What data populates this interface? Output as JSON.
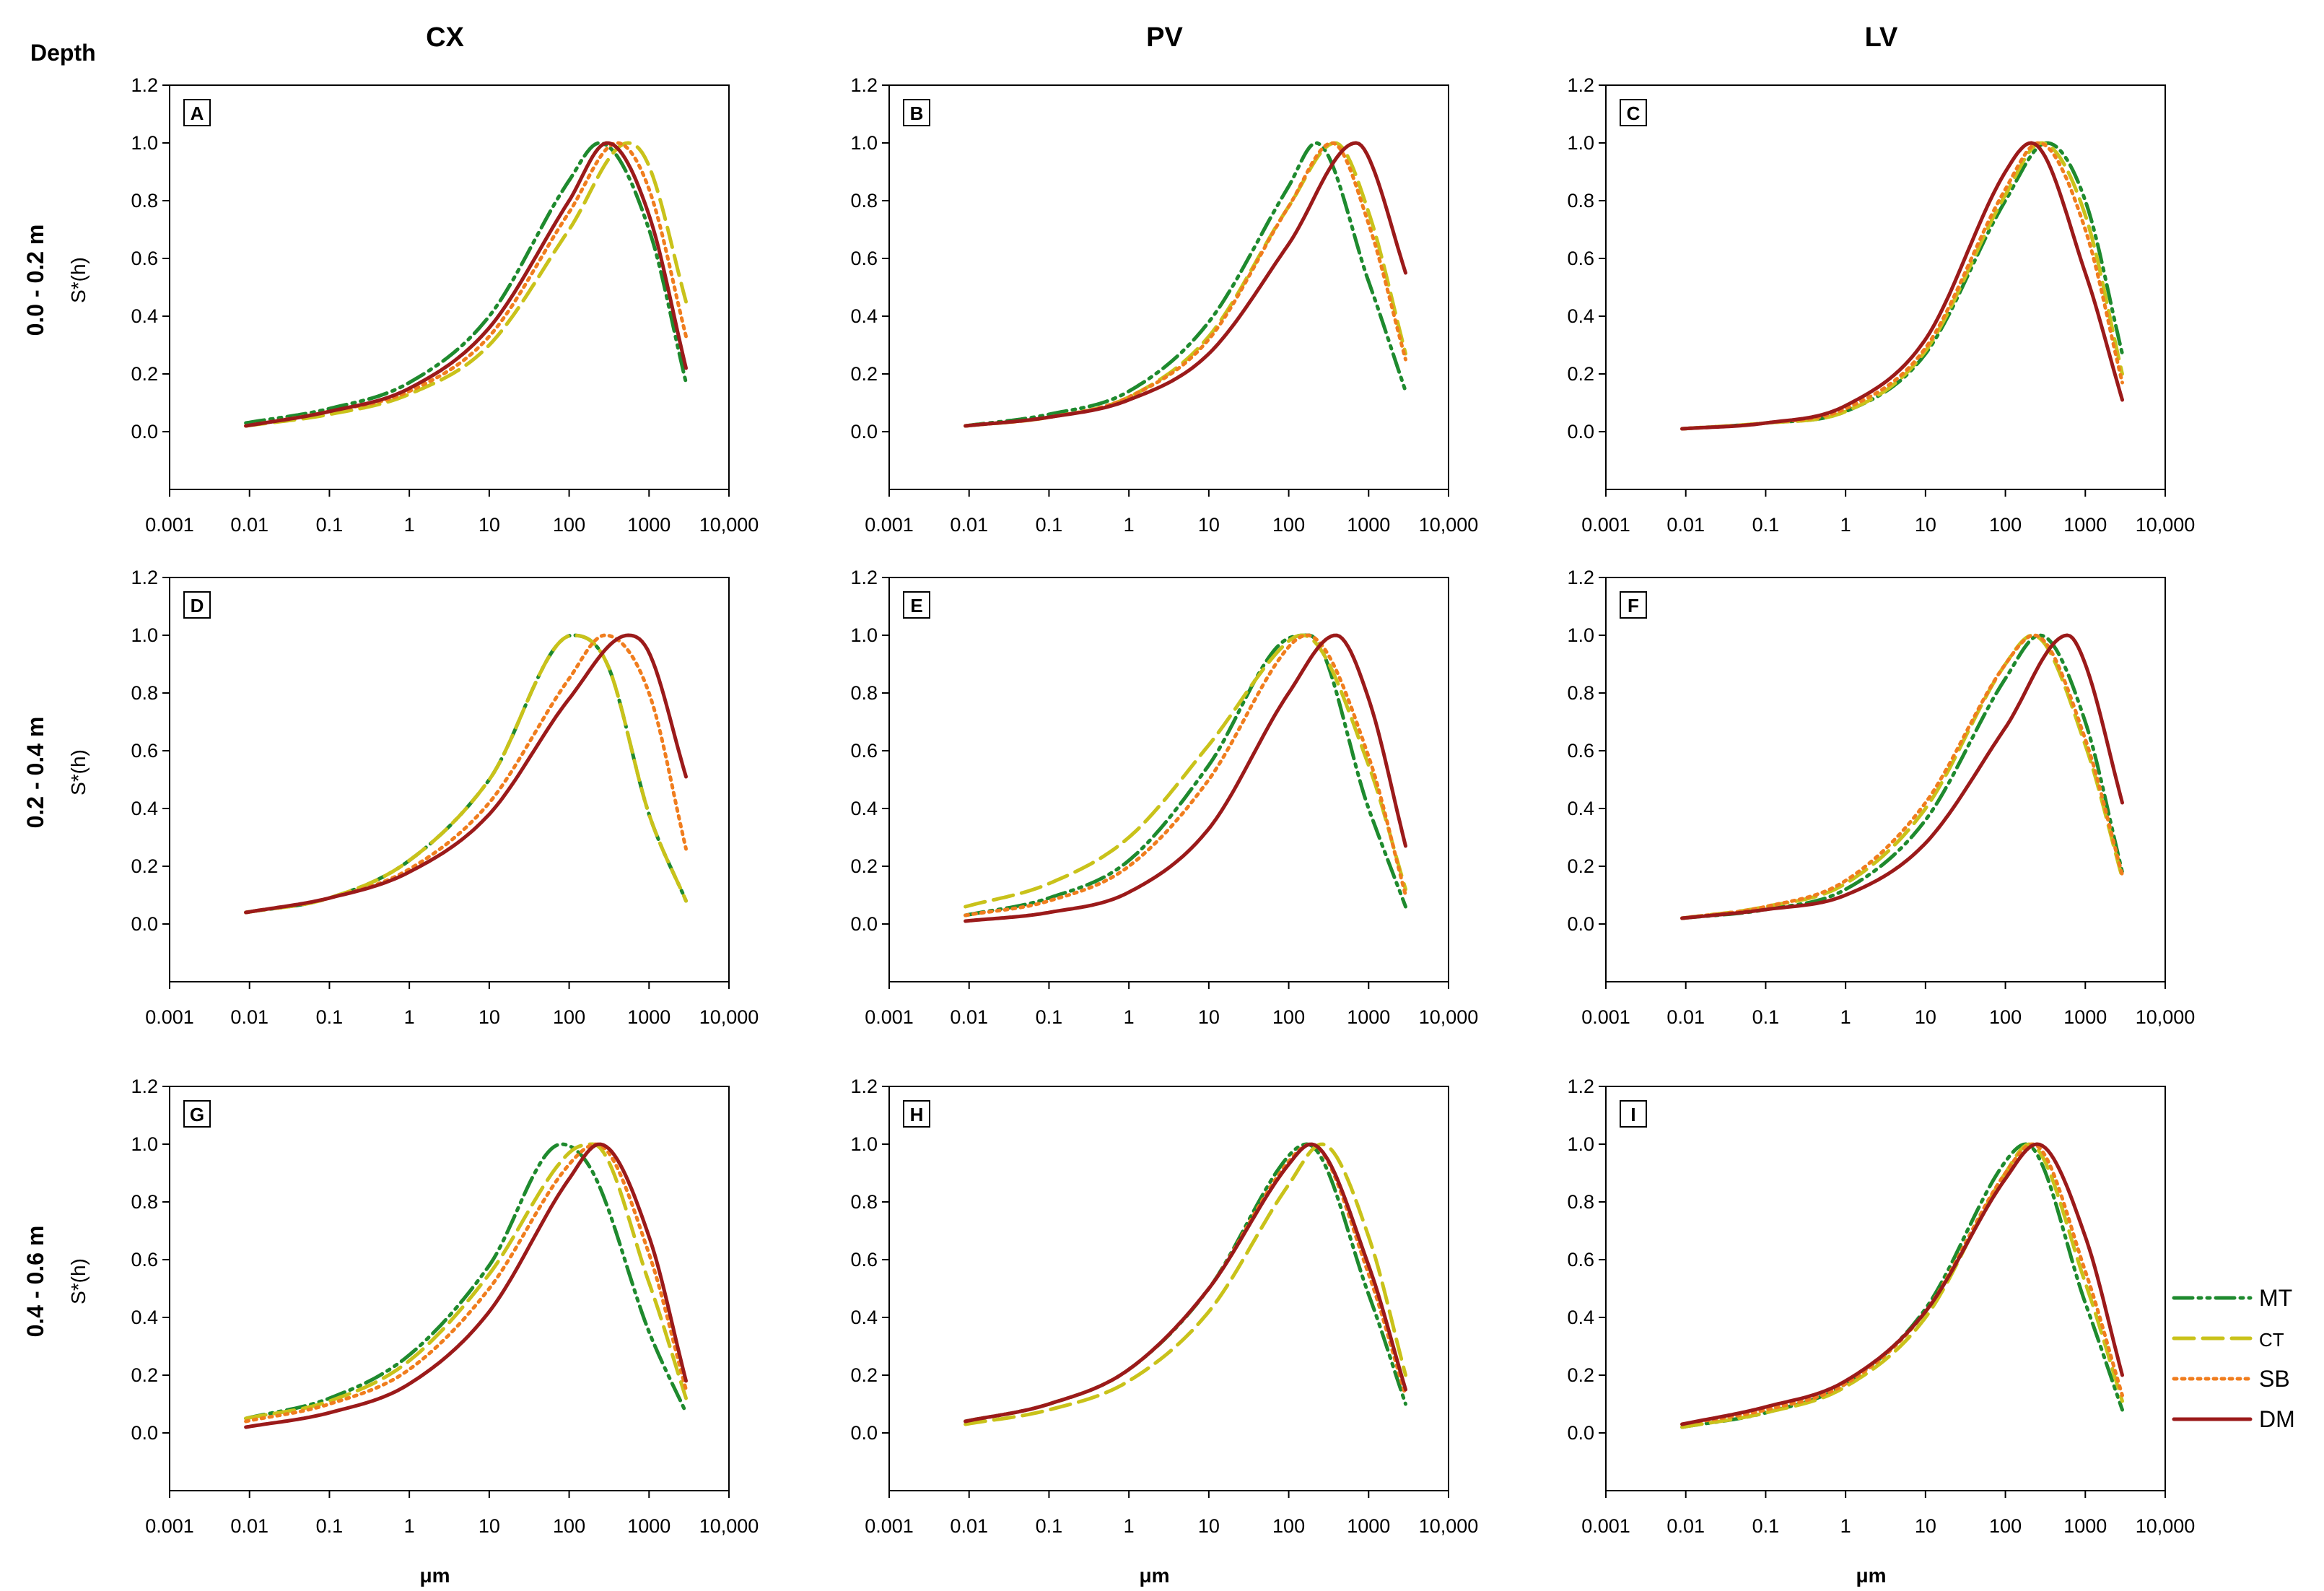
{
  "figure": {
    "depth_label": "Depth",
    "columns": [
      "CX",
      "PV",
      "LV"
    ],
    "rows": [
      "0.0 - 0.2 m",
      "0.2 - 0.4 m",
      "0.4 - 0.6 m"
    ],
    "ylabel": "S*(h)",
    "xlabel": "μm"
  },
  "chart_data": [
    {
      "type": "line",
      "panel": "A",
      "title": "A",
      "xscale": "log",
      "xlim": [
        0.001,
        10000
      ],
      "ylim": [
        -0.2,
        1.2
      ],
      "xticks": [
        "0.001",
        "0.01",
        "0.1",
        "1",
        "10",
        "100",
        "1000",
        "10,000"
      ],
      "yticks": [
        "0.0",
        "0.2",
        "0.4",
        "0.6",
        "0.8",
        "1.0",
        "1.2"
      ],
      "series": [
        {
          "name": "MT",
          "x": [
            0.009,
            0.1,
            1,
            10,
            100,
            240,
            1000,
            2900
          ],
          "y": [
            0.03,
            0.08,
            0.17,
            0.4,
            0.87,
            1.0,
            0.7,
            0.17
          ]
        },
        {
          "name": "CT",
          "x": [
            0.009,
            0.1,
            1,
            10,
            100,
            550,
            1000,
            2900
          ],
          "y": [
            0.02,
            0.06,
            0.13,
            0.3,
            0.7,
            1.0,
            0.92,
            0.45
          ]
        },
        {
          "name": "SB",
          "x": [
            0.009,
            0.1,
            1,
            10,
            100,
            400,
            1000,
            2900
          ],
          "y": [
            0.02,
            0.07,
            0.14,
            0.33,
            0.76,
            1.0,
            0.84,
            0.33
          ]
        },
        {
          "name": "DM",
          "x": [
            0.009,
            0.1,
            1,
            10,
            100,
            300,
            1000,
            2900
          ],
          "y": [
            0.02,
            0.07,
            0.15,
            0.36,
            0.8,
            1.0,
            0.75,
            0.22
          ]
        }
      ]
    },
    {
      "type": "line",
      "panel": "B",
      "title": "B",
      "xscale": "log",
      "xlim": [
        0.001,
        10000
      ],
      "ylim": [
        -0.2,
        1.2
      ],
      "xticks": [
        "0.001",
        "0.01",
        "0.1",
        "1",
        "10",
        "100",
        "1000",
        "10,000"
      ],
      "yticks": [
        "0.0",
        "0.2",
        "0.4",
        "0.6",
        "0.8",
        "1.0",
        "1.2"
      ],
      "series": [
        {
          "name": "MT",
          "x": [
            0.009,
            0.1,
            1,
            10,
            100,
            220,
            1000,
            2900
          ],
          "y": [
            0.02,
            0.06,
            0.14,
            0.38,
            0.85,
            1.0,
            0.52,
            0.14
          ]
        },
        {
          "name": "CT",
          "x": [
            0.009,
            0.1,
            1,
            10,
            100,
            380,
            1000,
            2900
          ],
          "y": [
            0.02,
            0.05,
            0.12,
            0.33,
            0.78,
            1.0,
            0.76,
            0.27
          ]
        },
        {
          "name": "SB",
          "x": [
            0.009,
            0.1,
            1,
            10,
            100,
            350,
            1000,
            2900
          ],
          "y": [
            0.02,
            0.05,
            0.12,
            0.32,
            0.78,
            1.0,
            0.72,
            0.25
          ]
        },
        {
          "name": "DM",
          "x": [
            0.009,
            0.1,
            1,
            10,
            100,
            700,
            1000,
            2900
          ],
          "y": [
            0.02,
            0.05,
            0.11,
            0.27,
            0.65,
            1.0,
            0.95,
            0.55
          ]
        }
      ]
    },
    {
      "type": "line",
      "panel": "C",
      "title": "C",
      "xscale": "log",
      "xlim": [
        0.001,
        10000
      ],
      "ylim": [
        -0.2,
        1.2
      ],
      "xticks": [
        "0.001",
        "0.01",
        "0.1",
        "1",
        "10",
        "100",
        "1000",
        "10,000"
      ],
      "yticks": [
        "0.0",
        "0.2",
        "0.4",
        "0.6",
        "0.8",
        "1.0",
        "1.2"
      ],
      "series": [
        {
          "name": "MT",
          "x": [
            0.009,
            0.1,
            1,
            10,
            100,
            330,
            1000,
            2900
          ],
          "y": [
            0.01,
            0.03,
            0.07,
            0.27,
            0.8,
            1.0,
            0.8,
            0.27
          ]
        },
        {
          "name": "CT",
          "x": [
            0.009,
            0.1,
            1,
            10,
            100,
            280,
            1000,
            2900
          ],
          "y": [
            0.01,
            0.03,
            0.07,
            0.28,
            0.82,
            1.0,
            0.75,
            0.2
          ]
        },
        {
          "name": "SB",
          "x": [
            0.009,
            0.1,
            1,
            10,
            100,
            260,
            1000,
            2900
          ],
          "y": [
            0.01,
            0.03,
            0.08,
            0.29,
            0.84,
            1.0,
            0.7,
            0.17
          ]
        },
        {
          "name": "DM",
          "x": [
            0.009,
            0.1,
            1,
            10,
            100,
            210,
            1000,
            2900
          ],
          "y": [
            0.01,
            0.03,
            0.09,
            0.32,
            0.9,
            1.0,
            0.55,
            0.11
          ]
        }
      ]
    },
    {
      "type": "line",
      "panel": "D",
      "title": "D",
      "xscale": "log",
      "xlim": [
        0.001,
        10000
      ],
      "ylim": [
        -0.2,
        1.2
      ],
      "xticks": [
        "0.001",
        "0.01",
        "0.1",
        "1",
        "10",
        "100",
        "1000",
        "10,000"
      ],
      "yticks": [
        "0.0",
        "0.2",
        "0.4",
        "0.6",
        "0.8",
        "1.0",
        "1.2"
      ],
      "series": [
        {
          "name": "MT",
          "x": [
            0.009,
            0.1,
            1,
            10,
            110,
            300,
            1000,
            2900
          ],
          "y": [
            0.04,
            0.09,
            0.22,
            0.5,
            1.0,
            0.9,
            0.38,
            0.08
          ]
        },
        {
          "name": "CT",
          "x": [
            0.009,
            0.1,
            1,
            10,
            110,
            300,
            1000,
            2900
          ],
          "y": [
            0.04,
            0.09,
            0.22,
            0.5,
            1.0,
            0.9,
            0.38,
            0.08
          ]
        },
        {
          "name": "SB",
          "x": [
            0.009,
            0.1,
            1,
            10,
            100,
            280,
            1000,
            2900
          ],
          "y": [
            0.04,
            0.09,
            0.19,
            0.42,
            0.85,
            1.0,
            0.8,
            0.26
          ]
        },
        {
          "name": "DM",
          "x": [
            0.009,
            0.1,
            1,
            10,
            100,
            550,
            1000,
            2900
          ],
          "y": [
            0.04,
            0.09,
            0.18,
            0.38,
            0.78,
            1.0,
            0.94,
            0.51
          ]
        }
      ]
    },
    {
      "type": "line",
      "panel": "E",
      "title": "E",
      "xscale": "log",
      "xlim": [
        0.001,
        10000
      ],
      "ylim": [
        -0.2,
        1.2
      ],
      "xticks": [
        "0.001",
        "0.01",
        "0.1",
        "1",
        "10",
        "100",
        "1000",
        "10,000"
      ],
      "yticks": [
        "0.0",
        "0.2",
        "0.4",
        "0.6",
        "0.8",
        "1.0",
        "1.2"
      ],
      "series": [
        {
          "name": "MT",
          "x": [
            0.009,
            0.1,
            1,
            10,
            100,
            180,
            1000,
            2900
          ],
          "y": [
            0.03,
            0.09,
            0.22,
            0.55,
            0.99,
            1.0,
            0.4,
            0.06
          ]
        },
        {
          "name": "CT",
          "x": [
            0.009,
            0.1,
            1,
            10,
            100,
            150,
            1000,
            2900
          ],
          "y": [
            0.06,
            0.14,
            0.3,
            0.62,
            0.98,
            1.0,
            0.55,
            0.12
          ]
        },
        {
          "name": "SB",
          "x": [
            0.009,
            0.1,
            1,
            10,
            100,
            170,
            1000,
            2900
          ],
          "y": [
            0.03,
            0.08,
            0.2,
            0.5,
            0.96,
            1.0,
            0.58,
            0.1
          ]
        },
        {
          "name": "DM",
          "x": [
            0.009,
            0.1,
            1,
            10,
            100,
            390,
            1000,
            2900
          ],
          "y": [
            0.01,
            0.04,
            0.11,
            0.33,
            0.8,
            1.0,
            0.78,
            0.27
          ]
        }
      ]
    },
    {
      "type": "line",
      "panel": "F",
      "title": "F",
      "xscale": "log",
      "xlim": [
        0.001,
        10000
      ],
      "ylim": [
        -0.2,
        1.2
      ],
      "xticks": [
        "0.001",
        "0.01",
        "0.1",
        "1",
        "10",
        "100",
        "1000",
        "10,000"
      ],
      "yticks": [
        "0.0",
        "0.2",
        "0.4",
        "0.6",
        "0.8",
        "1.0",
        "1.2"
      ],
      "series": [
        {
          "name": "MT",
          "x": [
            0.009,
            0.1,
            1,
            10,
            100,
            270,
            1000,
            2900
          ],
          "y": [
            0.02,
            0.05,
            0.12,
            0.36,
            0.85,
            1.0,
            0.7,
            0.18
          ]
        },
        {
          "name": "CT",
          "x": [
            0.009,
            0.1,
            1,
            10,
            100,
            220,
            1000,
            2900
          ],
          "y": [
            0.02,
            0.06,
            0.14,
            0.4,
            0.9,
            1.0,
            0.62,
            0.16
          ]
        },
        {
          "name": "SB",
          "x": [
            0.009,
            0.1,
            1,
            10,
            100,
            230,
            1000,
            2900
          ],
          "y": [
            0.02,
            0.06,
            0.15,
            0.42,
            0.9,
            1.0,
            0.64,
            0.17
          ]
        },
        {
          "name": "DM",
          "x": [
            0.009,
            0.1,
            1,
            10,
            100,
            600,
            1000,
            2900
          ],
          "y": [
            0.02,
            0.05,
            0.1,
            0.28,
            0.68,
            1.0,
            0.9,
            0.42
          ]
        }
      ]
    },
    {
      "type": "line",
      "panel": "G",
      "title": "G",
      "xscale": "log",
      "xlim": [
        0.001,
        10000
      ],
      "ylim": [
        -0.2,
        1.2
      ],
      "xticks": [
        "0.001",
        "0.01",
        "0.1",
        "1",
        "10",
        "100",
        "1000",
        "10,000"
      ],
      "yticks": [
        "0.0",
        "0.2",
        "0.4",
        "0.6",
        "0.8",
        "1.0",
        "1.2"
      ],
      "series": [
        {
          "name": "MT",
          "x": [
            0.009,
            0.1,
            1,
            10,
            80,
            200,
            1000,
            2900
          ],
          "y": [
            0.05,
            0.12,
            0.27,
            0.58,
            1.0,
            0.9,
            0.35,
            0.07
          ]
        },
        {
          "name": "CT",
          "x": [
            0.009,
            0.1,
            1,
            10,
            100,
            200,
            1000,
            2900
          ],
          "y": [
            0.05,
            0.11,
            0.25,
            0.55,
            0.97,
            1.0,
            0.52,
            0.12
          ]
        },
        {
          "name": "SB",
          "x": [
            0.009,
            0.1,
            1,
            10,
            100,
            220,
            1000,
            2900
          ],
          "y": [
            0.04,
            0.1,
            0.22,
            0.5,
            0.93,
            1.0,
            0.62,
            0.15
          ]
        },
        {
          "name": "DM",
          "x": [
            0.009,
            0.1,
            1,
            10,
            100,
            240,
            1000,
            2900
          ],
          "y": [
            0.02,
            0.07,
            0.17,
            0.42,
            0.88,
            1.0,
            0.68,
            0.18
          ]
        }
      ]
    },
    {
      "type": "line",
      "panel": "H",
      "title": "H",
      "xscale": "log",
      "xlim": [
        0.001,
        10000
      ],
      "ylim": [
        -0.2,
        1.2
      ],
      "xticks": [
        "0.001",
        "0.01",
        "0.1",
        "1",
        "10",
        "100",
        "1000",
        "10,000"
      ],
      "yticks": [
        "0.0",
        "0.2",
        "0.4",
        "0.6",
        "0.8",
        "1.0",
        "1.2"
      ],
      "series": [
        {
          "name": "MT",
          "x": [
            0.009,
            0.1,
            1,
            10,
            100,
            170,
            1000,
            2900
          ],
          "y": [
            0.04,
            0.1,
            0.22,
            0.5,
            0.96,
            1.0,
            0.48,
            0.1
          ]
        },
        {
          "name": "CT",
          "x": [
            0.009,
            0.1,
            1,
            10,
            100,
            260,
            1000,
            2900
          ],
          "y": [
            0.03,
            0.08,
            0.18,
            0.42,
            0.86,
            1.0,
            0.68,
            0.2
          ]
        },
        {
          "name": "SB",
          "x": [
            0.009,
            0.1,
            1,
            10,
            100,
            190,
            1000,
            2900
          ],
          "y": [
            0.04,
            0.1,
            0.22,
            0.5,
            0.94,
            1.0,
            0.55,
            0.13
          ]
        },
        {
          "name": "DM",
          "x": [
            0.009,
            0.1,
            1,
            10,
            100,
            190,
            1000,
            2900
          ],
          "y": [
            0.04,
            0.1,
            0.22,
            0.5,
            0.93,
            1.0,
            0.58,
            0.15
          ]
        }
      ]
    },
    {
      "type": "line",
      "panel": "I",
      "title": "I",
      "xscale": "log",
      "xlim": [
        0.001,
        10000
      ],
      "ylim": [
        -0.2,
        1.2
      ],
      "xticks": [
        "0.001",
        "0.01",
        "0.1",
        "1",
        "10",
        "100",
        "1000",
        "10,000"
      ],
      "yticks": [
        "0.0",
        "0.2",
        "0.4",
        "0.6",
        "0.8",
        "1.0",
        "1.2"
      ],
      "series": [
        {
          "name": "MT",
          "x": [
            0.009,
            0.1,
            1,
            10,
            100,
            180,
            1000,
            2900
          ],
          "y": [
            0.02,
            0.07,
            0.17,
            0.43,
            0.94,
            1.0,
            0.45,
            0.08
          ]
        },
        {
          "name": "CT",
          "x": [
            0.009,
            0.1,
            1,
            10,
            100,
            200,
            1000,
            2900
          ],
          "y": [
            0.02,
            0.07,
            0.16,
            0.4,
            0.9,
            1.0,
            0.52,
            0.11
          ]
        },
        {
          "name": "SB",
          "x": [
            0.009,
            0.1,
            1,
            10,
            100,
            220,
            1000,
            2900
          ],
          "y": [
            0.03,
            0.08,
            0.17,
            0.42,
            0.9,
            1.0,
            0.56,
            0.13
          ]
        },
        {
          "name": "DM",
          "x": [
            0.009,
            0.1,
            1,
            10,
            100,
            250,
            1000,
            2900
          ],
          "y": [
            0.03,
            0.09,
            0.18,
            0.42,
            0.88,
            1.0,
            0.68,
            0.2
          ]
        }
      ]
    }
  ],
  "legend": [
    {
      "name": "MT",
      "color": "#1e8a2e",
      "dash": "dash-dot-dot"
    },
    {
      "name": "CT",
      "color": "#c9c21a",
      "dash": "dashed"
    },
    {
      "name": "SB",
      "color": "#f07d1e",
      "dash": "dotted"
    },
    {
      "name": "DM",
      "color": "#9b1a1a",
      "dash": "solid"
    }
  ]
}
